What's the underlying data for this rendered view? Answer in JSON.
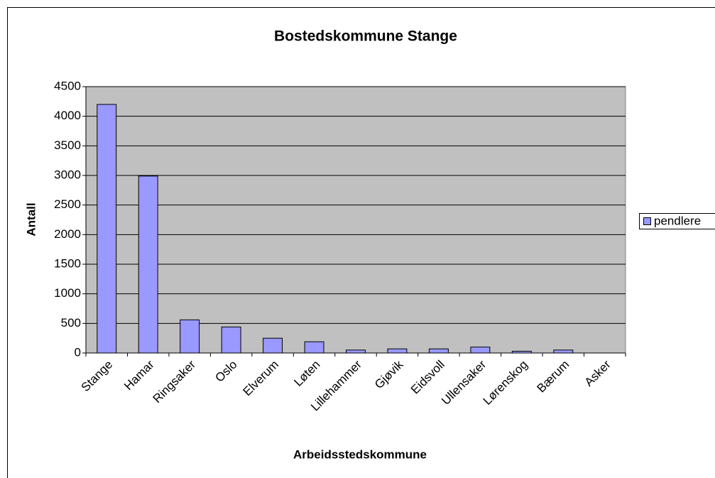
{
  "chart_data": {
    "type": "bar",
    "title": "Bostedskommune Stange",
    "x_label": "Arbeidsstedskommune",
    "y_label": "Antall",
    "categories": [
      "Stange",
      "Hamar",
      "Ringsaker",
      "Oslo",
      "Elverum",
      "Løten",
      "Lillehammer",
      "Gjøvik",
      "Eidsvoll",
      "Ullensaker",
      "Lørenskog",
      "Bærum",
      "Asker"
    ],
    "series": [
      {
        "name": "pendlere",
        "color": "#9999ff",
        "values": [
          4200,
          2990,
          560,
          440,
          250,
          190,
          50,
          70,
          70,
          100,
          30,
          50,
          0
        ]
      }
    ],
    "ylim": [
      0,
      4500
    ],
    "yticks": [
      0,
      500,
      1000,
      1500,
      2000,
      2500,
      3000,
      3500,
      4000,
      4500
    ],
    "grid": true,
    "legend": "right"
  }
}
